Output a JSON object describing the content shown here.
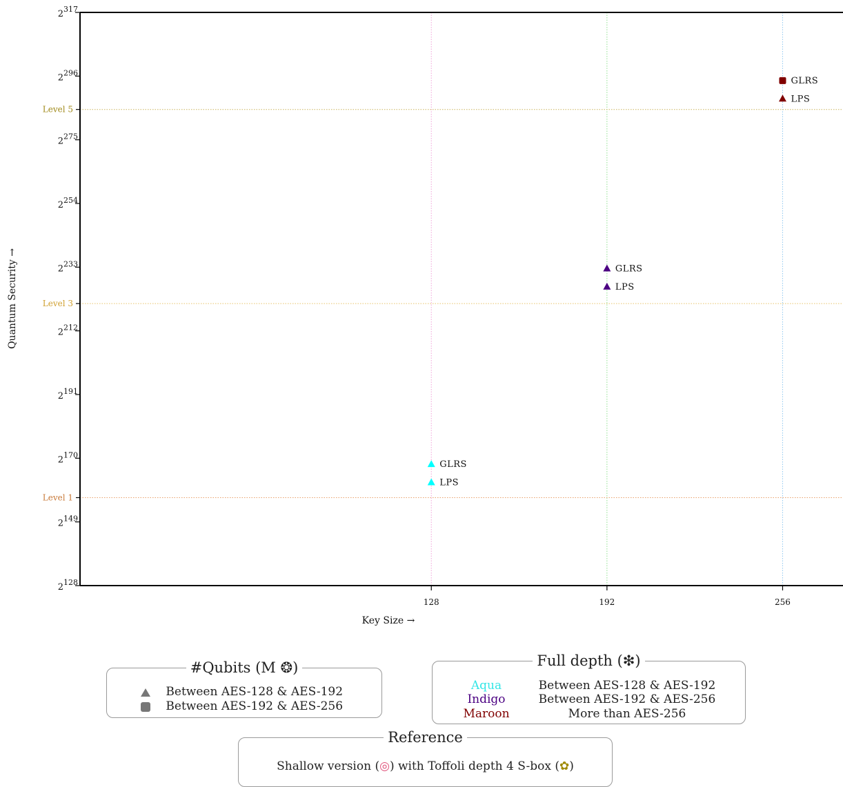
{
  "chart_data": {
    "type": "scatter",
    "xlabel": "Key Size →",
    "ylabel": "Quantum Security →",
    "x_ticks": [
      128,
      192,
      256
    ],
    "x_range": [
      0,
      278
    ],
    "y_ticks": [
      {
        "value": 128,
        "label": "2",
        "exp": "128"
      },
      {
        "value": 149,
        "label": "2",
        "exp": "149"
      },
      {
        "value": 170,
        "label": "2",
        "exp": "170"
      },
      {
        "value": 191,
        "label": "2",
        "exp": "191"
      },
      {
        "value": 212,
        "label": "2",
        "exp": "212"
      },
      {
        "value": 233,
        "label": "2",
        "exp": "233"
      },
      {
        "value": 254,
        "label": "2",
        "exp": "254"
      },
      {
        "value": 275,
        "label": "2",
        "exp": "275"
      },
      {
        "value": 296,
        "label": "2",
        "exp": "296"
      },
      {
        "value": 317,
        "label": "2",
        "exp": "317"
      }
    ],
    "y_range": [
      128,
      317
    ],
    "y_scale": "log2 (exponent shown)",
    "levels": [
      {
        "label": "Level 1",
        "y": 157,
        "color": "#e8a06a",
        "text_color": "#c87a3a"
      },
      {
        "label": "Level 3",
        "y": 221,
        "color": "#e8c36a",
        "text_color": "#d0a030"
      },
      {
        "label": "Level 5",
        "y": 285,
        "color": "#c9b35a",
        "text_color": "#a08a1a"
      }
    ],
    "vlines": [
      {
        "x": 128,
        "color": "#f0a0d8"
      },
      {
        "x": 192,
        "color": "#8fe08f"
      },
      {
        "x": 256,
        "color": "#8fc8f0"
      }
    ],
    "points": [
      {
        "x": 128,
        "y": 168,
        "label": "GLRS",
        "shape": "triangle",
        "color": "#00ffff"
      },
      {
        "x": 128,
        "y": 162,
        "label": "LPS",
        "shape": "triangle",
        "color": "#00ffff"
      },
      {
        "x": 192,
        "y": 232.5,
        "label": "GLRS",
        "shape": "triangle",
        "color": "#4b0082"
      },
      {
        "x": 192,
        "y": 226.5,
        "label": "LPS",
        "shape": "triangle",
        "color": "#4b0082"
      },
      {
        "x": 256,
        "y": 294.5,
        "label": "GLRS",
        "shape": "square",
        "color": "#800000"
      },
      {
        "x": 256,
        "y": 288.5,
        "label": "LPS",
        "shape": "triangle",
        "color": "#800000"
      }
    ],
    "grid": false
  },
  "legend_qubits": {
    "title": "#Qubits (M ❂)",
    "rows": [
      {
        "shape": "triangle",
        "text": "Between AES-128 & AES-192"
      },
      {
        "shape": "square",
        "text": "Between AES-192 & AES-256"
      }
    ]
  },
  "legend_depth": {
    "title": "Full depth (❇)",
    "rows": [
      {
        "name": "Aqua",
        "color": "#33e6e6",
        "text": "Between AES-128 & AES-192"
      },
      {
        "name": "Indigo",
        "color": "#4b0082",
        "text": "Between AES-192 & AES-256"
      },
      {
        "name": "Maroon",
        "color": "#800000",
        "text": "More than AES-256"
      }
    ]
  },
  "legend_reference": {
    "title": "Reference",
    "text_before": "Shallow version (",
    "icon1": "◎",
    "text_middle": ") with Toffoli depth 4 S-box (",
    "icon2": "✿",
    "text_after": ")"
  }
}
